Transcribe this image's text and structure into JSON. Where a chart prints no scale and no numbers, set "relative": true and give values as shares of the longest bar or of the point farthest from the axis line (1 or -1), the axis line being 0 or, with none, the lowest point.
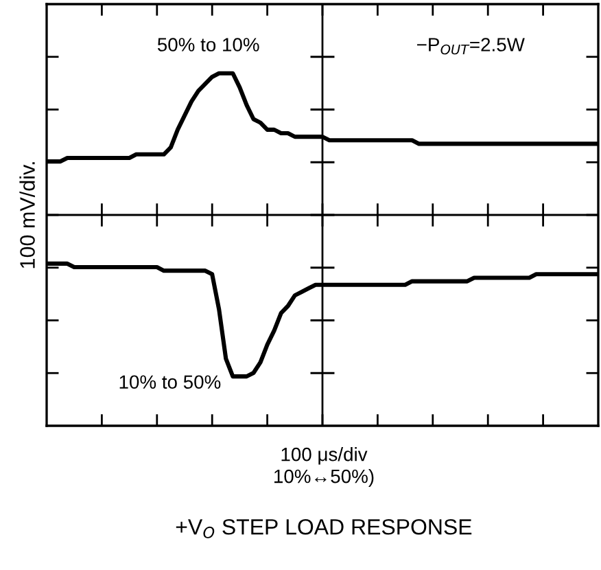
{
  "chart_data": {
    "type": "line",
    "relative": true,
    "title": "+V$_{O}$ STEP LOAD RESPONSE",
    "xlabel": "100 μs/div\n10%↔50%)",
    "ylabel": "100 mV/div.",
    "categories": [
      null,
      null,
      null,
      null,
      null,
      null,
      null,
      null,
      null,
      null,
      null,
      null,
      null,
      null,
      null,
      null,
      null,
      null,
      null,
      null,
      null,
      null,
      null,
      null,
      null,
      null,
      null,
      null,
      null,
      null,
      null,
      null,
      null,
      null,
      null,
      null,
      null,
      null,
      null,
      null,
      null,
      null,
      null,
      null,
      null,
      null,
      null,
      null,
      null,
      null,
      null,
      null,
      null,
      null,
      null,
      null,
      null,
      null,
      null,
      null,
      null,
      null,
      null,
      null,
      null,
      null,
      null,
      null,
      null,
      null,
      null,
      null,
      null,
      null,
      null,
      null,
      null,
      null,
      null,
      null,
      null
    ],
    "series": [
      {
        "name": "50% to 10%",
        "color": "#000000",
        "values": [
          0.75,
          0.75,
          0.75,
          0.76,
          0.76,
          0.76,
          0.76,
          0.76,
          0.76,
          0.76,
          0.76,
          0.76,
          0.76,
          0.77,
          0.77,
          0.77,
          0.77,
          0.77,
          0.79,
          0.84,
          0.88,
          0.92,
          0.95,
          0.97,
          0.99,
          1.0,
          1.0,
          1.0,
          0.96,
          0.91,
          0.87,
          0.86,
          0.84,
          0.84,
          0.83,
          0.83,
          0.82,
          0.82,
          0.82,
          0.82,
          0.82,
          0.81,
          0.81,
          0.81,
          0.81,
          0.81,
          0.81,
          0.81,
          0.81,
          0.81,
          0.81,
          0.81,
          0.81,
          0.81,
          0.8,
          0.8,
          0.8,
          0.8,
          0.8,
          0.8,
          0.8,
          0.8,
          0.8,
          0.8,
          0.8,
          0.8,
          0.8,
          0.8,
          0.8,
          0.8,
          0.8,
          0.8,
          0.8,
          0.8,
          0.8,
          0.8,
          0.8,
          0.8,
          0.8,
          0.8,
          0.8
        ]
      },
      {
        "name": "10% to 50%",
        "color": "#000000",
        "values": [
          0.46,
          0.46,
          0.46,
          0.46,
          0.45,
          0.45,
          0.45,
          0.45,
          0.45,
          0.45,
          0.45,
          0.45,
          0.45,
          0.45,
          0.45,
          0.45,
          0.45,
          0.44,
          0.44,
          0.44,
          0.44,
          0.44,
          0.44,
          0.44,
          0.43,
          0.33,
          0.19,
          0.14,
          0.14,
          0.14,
          0.15,
          0.18,
          0.23,
          0.27,
          0.32,
          0.34,
          0.37,
          0.38,
          0.39,
          0.4,
          0.4,
          0.4,
          0.4,
          0.4,
          0.4,
          0.4,
          0.4,
          0.4,
          0.4,
          0.4,
          0.4,
          0.4,
          0.4,
          0.41,
          0.41,
          0.41,
          0.41,
          0.41,
          0.41,
          0.41,
          0.41,
          0.41,
          0.42,
          0.42,
          0.42,
          0.42,
          0.42,
          0.42,
          0.42,
          0.42,
          0.42,
          0.43,
          0.43,
          0.43,
          0.43,
          0.43,
          0.43,
          0.43,
          0.43,
          0.43,
          0.43
        ]
      }
    ],
    "annotations": [
      "−P$_{OUT}$=2.5W"
    ]
  }
}
